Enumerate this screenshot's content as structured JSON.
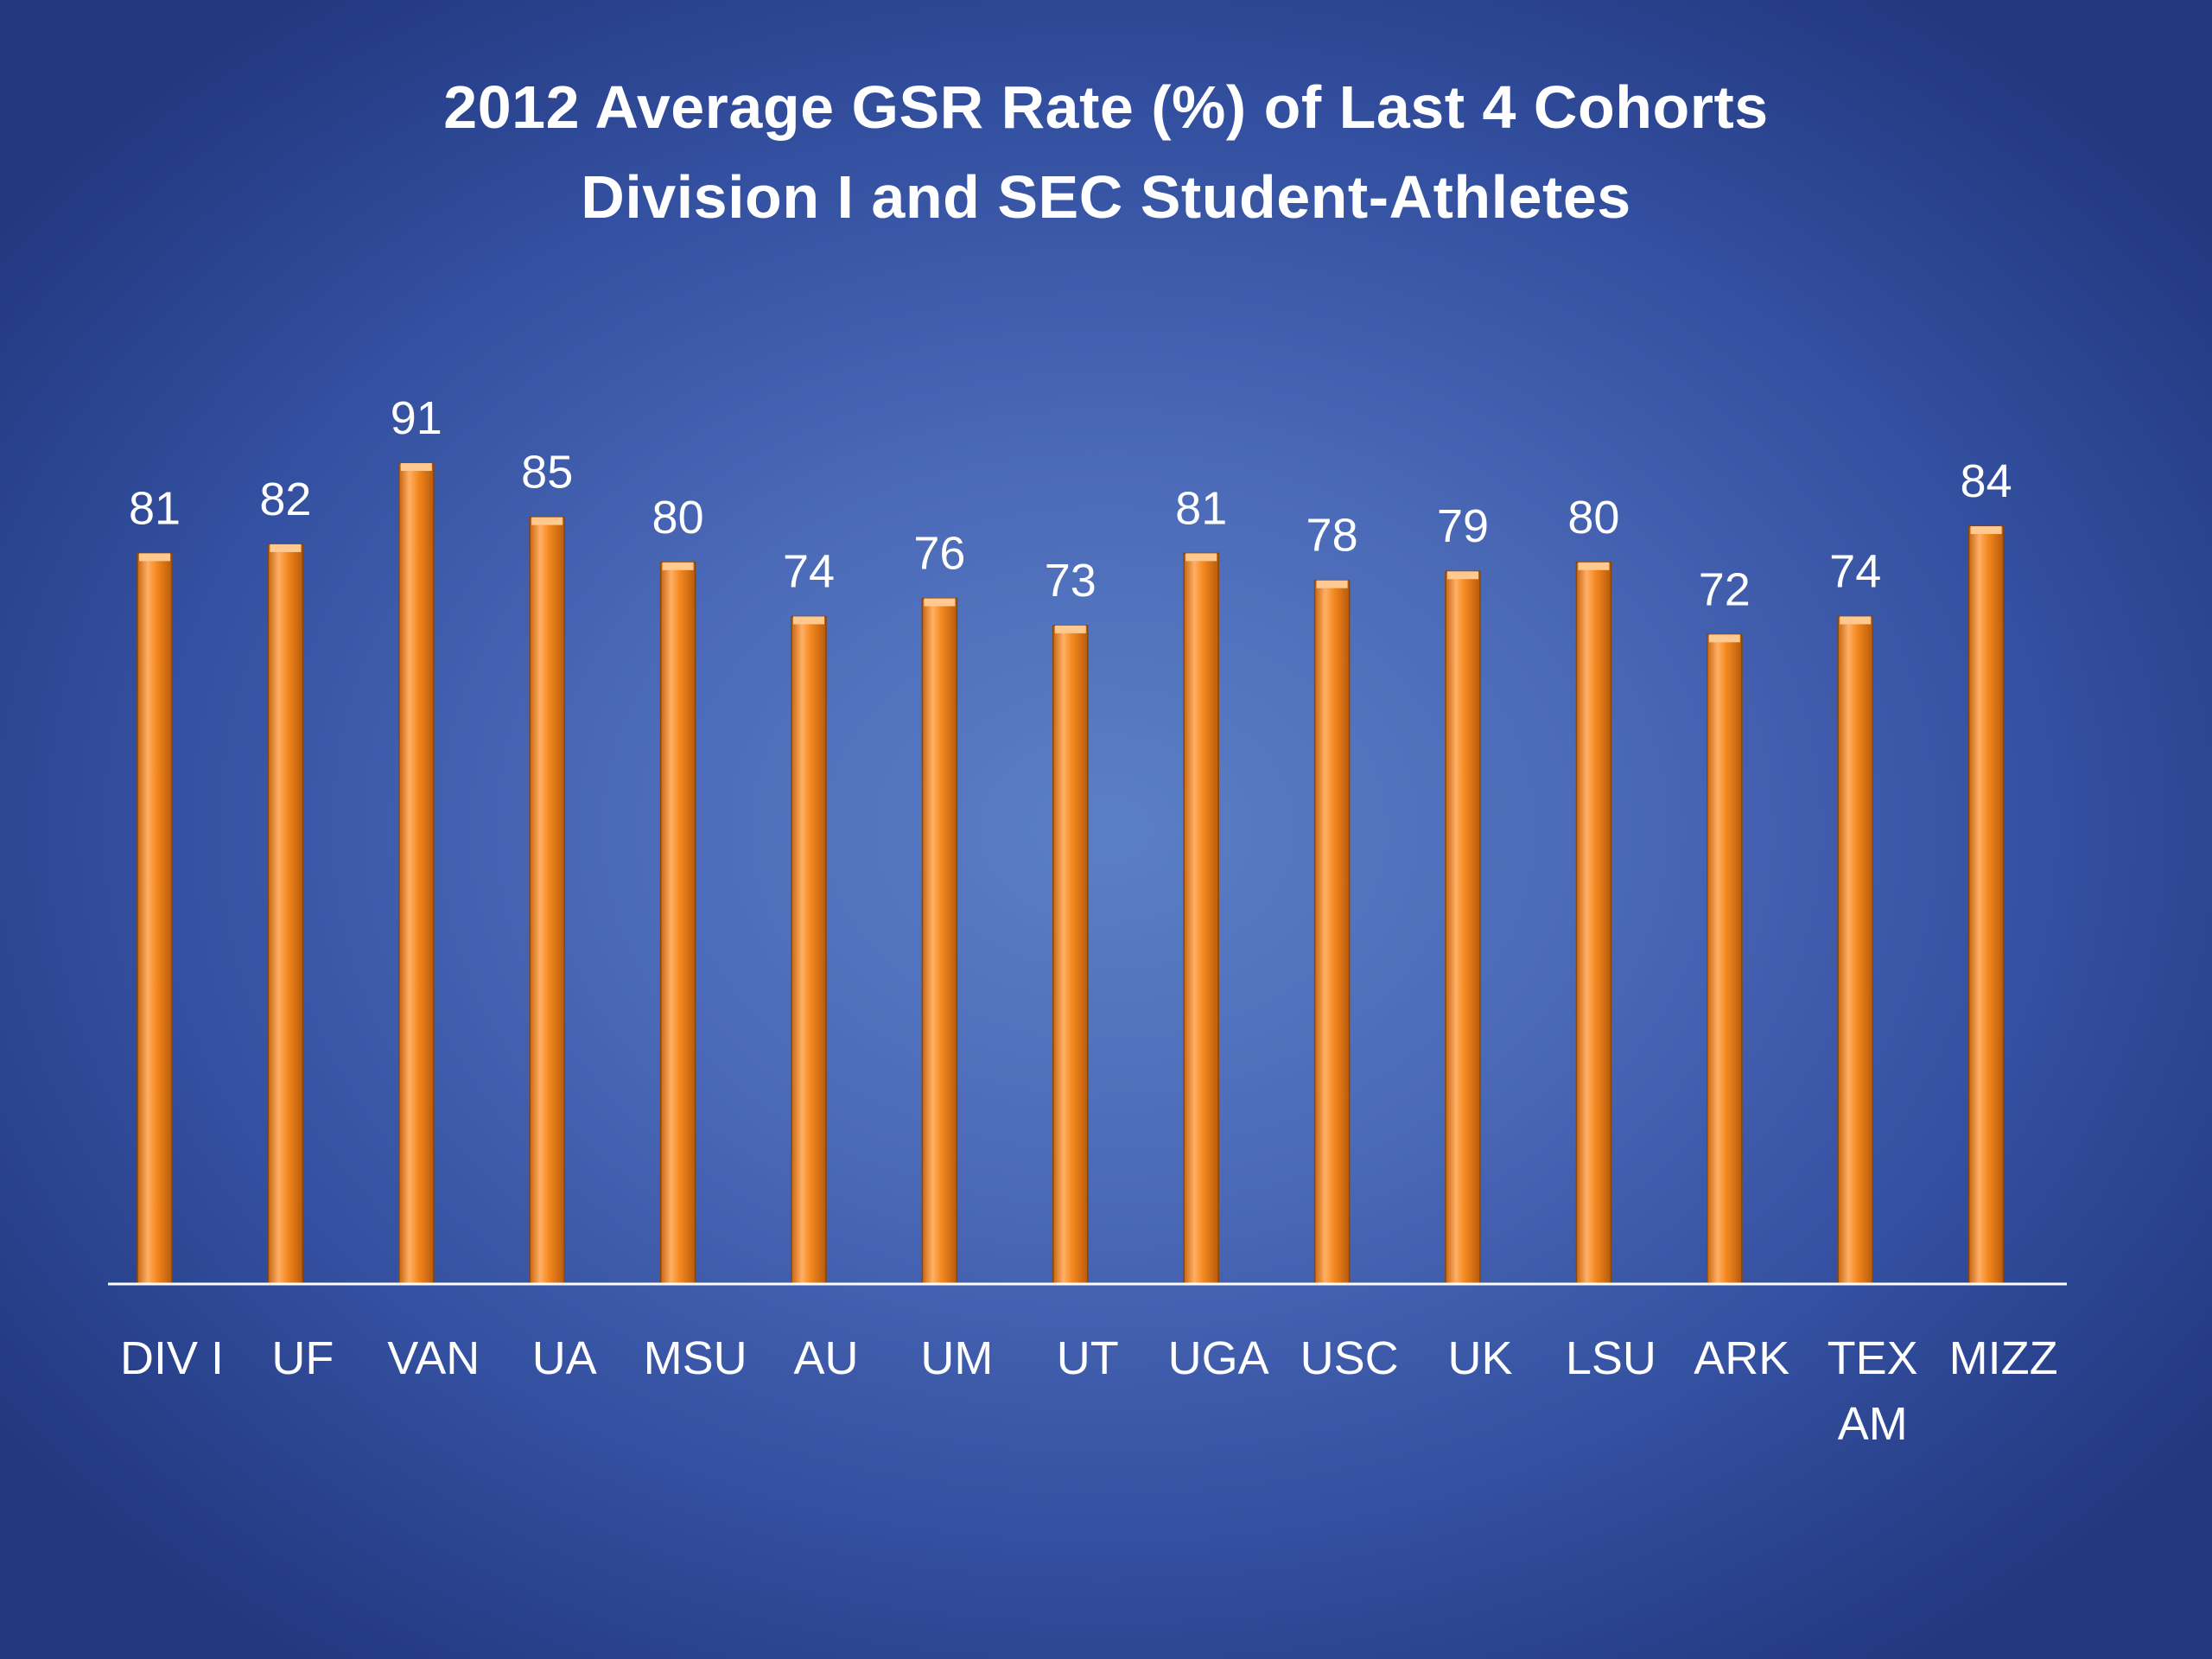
{
  "chart_data": {
    "type": "bar",
    "title": "2012 Average GSR Rate (%) of Last 4 Cohorts",
    "subtitle": "Division I and SEC Student-Athletes",
    "categories": [
      "DIV I",
      "UF",
      "VAN",
      "UA",
      "MSU",
      "AU",
      "UM",
      "UT",
      "UGA",
      "USC",
      "UK",
      "LSU",
      "ARK",
      "TEX AM",
      "MIZZ"
    ],
    "values": [
      81,
      82,
      91,
      85,
      80,
      74,
      76,
      73,
      81,
      78,
      79,
      80,
      72,
      74,
      84
    ],
    "data_labels": true,
    "ylim": [
      0,
      100
    ],
    "grid": false,
    "legend": "none",
    "colors": {
      "bar_light": "#ffb066",
      "bar_mid": "#f5891f",
      "bar_dark": "#b85a0c",
      "axis": "#ffffff",
      "background_center": "#5b7fc6",
      "background_edge": "#22387f"
    }
  }
}
